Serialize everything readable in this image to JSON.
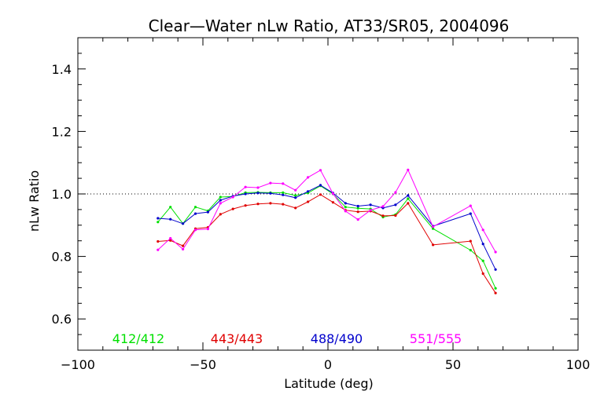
{
  "chart_data": {
    "type": "line",
    "title": "Clear—Water nLw Ratio, AT33/SR05, 2004096",
    "xlabel": "Latitude (deg)",
    "ylabel": "nLw Ratio",
    "xlim": [
      -100,
      100
    ],
    "ylim": [
      0.5,
      1.5
    ],
    "x_ticks": [
      -100,
      -50,
      0,
      50,
      100
    ],
    "x_tick_labels": [
      "−100",
      "−50",
      "0",
      "50",
      "100"
    ],
    "y_ticks": [
      0.6,
      0.8,
      1.0,
      1.2,
      1.4
    ],
    "y_tick_labels": [
      "0.6",
      "0.8",
      "1.0",
      "1.2",
      "1.4"
    ],
    "reference_line": {
      "y": 1.0,
      "style": "dotted"
    },
    "x": [
      -68,
      -63,
      -58,
      -53,
      -48,
      -43,
      -38,
      -33,
      -28,
      -23,
      -18,
      -13,
      -8,
      -3,
      2,
      7,
      12,
      17,
      22,
      27,
      32,
      42,
      57,
      62,
      67
    ],
    "series": [
      {
        "name": "412/412",
        "color": "#00e000",
        "values": [
          0.91,
          0.958,
          0.905,
          0.958,
          0.946,
          0.99,
          0.992,
          1.004,
          1.005,
          1.004,
          1.004,
          0.995,
          1.003,
          1.026,
          1.0,
          0.958,
          0.954,
          0.952,
          0.926,
          0.934,
          0.985,
          0.889,
          0.82,
          0.786,
          0.698
        ]
      },
      {
        "name": "443/443",
        "color": "#e00000",
        "values": [
          0.848,
          0.851,
          0.834,
          0.889,
          0.893,
          0.935,
          0.952,
          0.963,
          0.968,
          0.97,
          0.967,
          0.955,
          0.975,
          0.998,
          0.973,
          0.948,
          0.943,
          0.945,
          0.93,
          0.931,
          0.97,
          0.837,
          0.849,
          0.745,
          0.683
        ]
      },
      {
        "name": "488/490",
        "color": "#0000cc",
        "values": [
          0.922,
          0.919,
          0.905,
          0.937,
          0.942,
          0.98,
          0.993,
          1.0,
          1.003,
          1.002,
          0.997,
          0.988,
          1.008,
          1.028,
          1.003,
          0.97,
          0.961,
          0.965,
          0.955,
          0.965,
          0.995,
          0.897,
          0.937,
          0.84,
          0.758
        ]
      },
      {
        "name": "551/555",
        "color": "#ff00ff",
        "values": [
          0.821,
          0.858,
          0.823,
          0.885,
          0.888,
          0.97,
          0.99,
          1.022,
          1.02,
          1.035,
          1.033,
          1.012,
          1.053,
          1.076,
          1.001,
          0.945,
          0.918,
          0.948,
          0.96,
          1.005,
          1.077,
          0.895,
          0.962,
          0.885,
          0.814
        ]
      }
    ],
    "legend": {
      "placement": "bottom"
    }
  }
}
